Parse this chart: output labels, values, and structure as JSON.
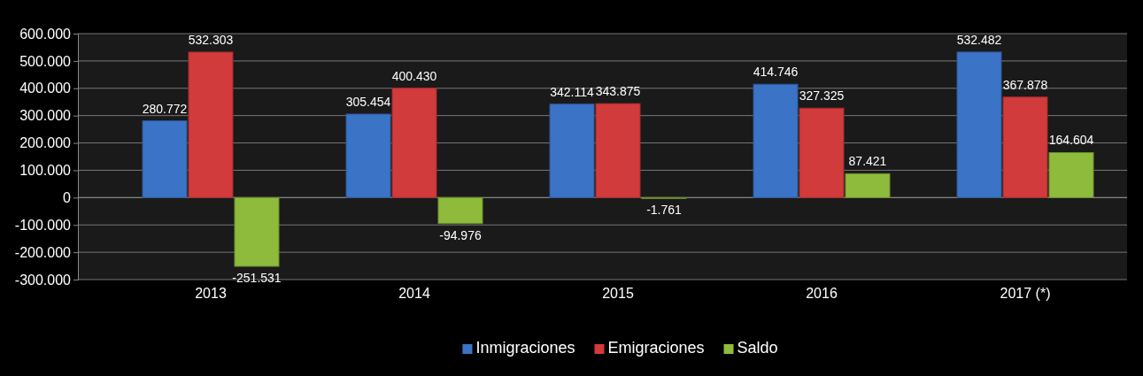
{
  "chart_data": {
    "type": "bar",
    "categories": [
      "2013",
      "2014",
      "2015",
      "2016",
      "2017 (*)"
    ],
    "series": [
      {
        "name": "Inmigraciones",
        "color": "#3b74c6",
        "values": [
          280772,
          305454,
          342114,
          414746,
          532482
        ],
        "value_labels": [
          "280.772",
          "305.454",
          "342.114",
          "414.746",
          "532.482"
        ]
      },
      {
        "name": "Emigraciones",
        "color": "#d23b3b",
        "values": [
          532303,
          400430,
          343875,
          327325,
          367878
        ],
        "value_labels": [
          "532.303",
          "400.430",
          "343.875",
          "327.325",
          "367.878"
        ]
      },
      {
        "name": "Saldo",
        "color": "#8fbb3c",
        "values": [
          -251531,
          -94976,
          -1761,
          87421,
          164604
        ],
        "value_labels": [
          "-251.531",
          "-94.976",
          "-1.761",
          "87.421",
          "164.604"
        ]
      }
    ],
    "ylim": [
      -300000,
      600000
    ],
    "yticks": [
      {
        "value": -300000,
        "label": "-300.000"
      },
      {
        "value": -200000,
        "label": "-200.000"
      },
      {
        "value": -100000,
        "label": "-100.000"
      },
      {
        "value": 0,
        "label": "0"
      },
      {
        "value": 100000,
        "label": "100.000"
      },
      {
        "value": 200000,
        "label": "200.000"
      },
      {
        "value": 300000,
        "label": "300.000"
      },
      {
        "value": 400000,
        "label": "400.000"
      },
      {
        "value": 500000,
        "label": "500.000"
      },
      {
        "value": 600000,
        "label": "600.000"
      }
    ],
    "grid": "y",
    "legend": "bottom"
  }
}
